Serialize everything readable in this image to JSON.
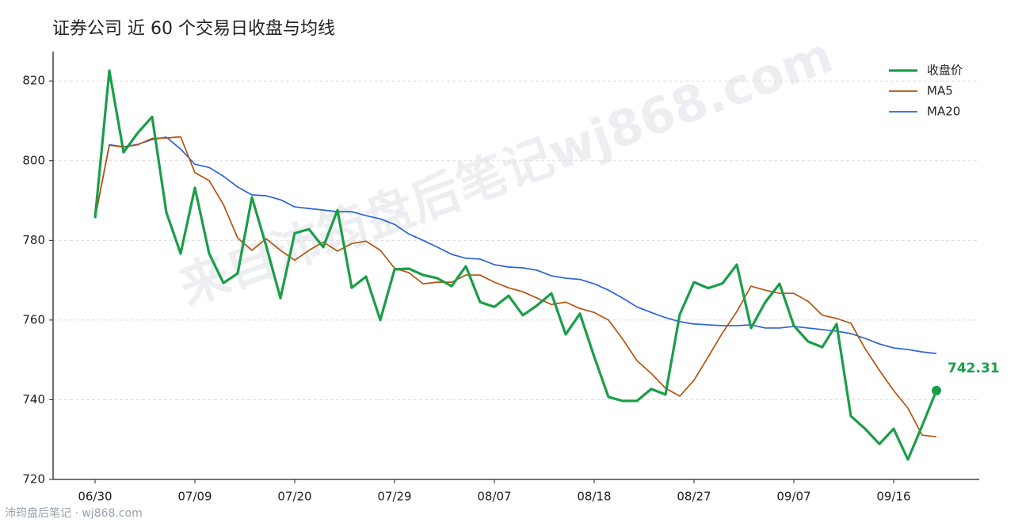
{
  "chart_data": {
    "type": "line",
    "title": "证券公司 近 60 个交易日收盘与均线",
    "watermark": "来自沛筠盘后笔记wj868.com",
    "footer": "沛筠盘后笔记 · wj868.com",
    "categories": [
      "06/30",
      null,
      null,
      null,
      null,
      null,
      null,
      "07/09",
      null,
      null,
      null,
      null,
      null,
      null,
      "07/20",
      null,
      null,
      null,
      null,
      null,
      null,
      "07/29",
      null,
      null,
      null,
      null,
      null,
      null,
      "08/07",
      null,
      null,
      null,
      null,
      null,
      null,
      "08/18",
      null,
      null,
      null,
      null,
      null,
      null,
      "08/27",
      null,
      null,
      null,
      null,
      null,
      null,
      "09/07",
      null,
      null,
      null,
      null,
      null,
      null,
      "09/16",
      null,
      null,
      null
    ],
    "series": [
      {
        "name": "收盘价",
        "color": "#1a9e48",
        "width": 3.2,
        "values": [
          785.6,
          822.6,
          802.1,
          807.0,
          811.0,
          787.0,
          776.7,
          793.2,
          776.7,
          769.3,
          771.7,
          790.8,
          778.6,
          765.5,
          781.8,
          782.8,
          778.3,
          787.6,
          768.1,
          770.9,
          760.0,
          772.7,
          772.9,
          771.3,
          770.5,
          768.5,
          773.5,
          764.5,
          763.3,
          766.1,
          761.2,
          763.7,
          766.7,
          756.4,
          761.6,
          750.8,
          740.7,
          739.7,
          739.7,
          742.7,
          741.3,
          761.4,
          769.5,
          768.0,
          769.2,
          773.9,
          758.0,
          764.5,
          769.1,
          758.6,
          754.6,
          753.2,
          759.0,
          735.9,
          732.7,
          728.9,
          732.7,
          725.0,
          733.5,
          742.31
        ]
      },
      {
        "name": "MA5",
        "color": "#b4540f",
        "width": 1.7,
        "values": [
          785.6,
          803.9,
          803.4,
          804.0,
          805.6,
          805.7,
          806.0,
          797.0,
          795.0,
          789.0,
          780.6,
          777.5,
          780.4,
          777.5,
          775.0,
          777.5,
          779.6,
          777.3,
          779.2,
          779.8,
          777.5,
          773.0,
          771.9,
          769.1,
          769.5,
          769.5,
          771.3,
          771.3,
          769.5,
          768.1,
          767.1,
          765.5,
          763.9,
          764.5,
          762.9,
          761.9,
          760.0,
          755.2,
          749.8,
          746.6,
          742.9,
          740.9,
          744.9,
          750.8,
          756.8,
          762.1,
          768.5,
          767.5,
          766.7,
          766.7,
          764.7,
          761.2,
          760.4,
          759.2,
          752.8,
          747.4,
          742.3,
          737.9,
          731.1,
          730.7
        ]
      },
      {
        "name": "MA20",
        "color": "#2b63d9",
        "width": 1.7,
        "values": [
          785.6,
          804.0,
          803.5,
          804.1,
          805.3,
          805.9,
          802.9,
          799.1,
          798.3,
          796.1,
          793.4,
          791.4,
          791.2,
          790.2,
          788.4,
          788.0,
          787.6,
          787.2,
          787.2,
          786.2,
          785.4,
          784.0,
          781.6,
          780.0,
          778.3,
          776.5,
          775.5,
          775.3,
          773.9,
          773.3,
          773.1,
          772.5,
          771.1,
          770.5,
          770.2,
          769.1,
          767.5,
          765.5,
          763.3,
          761.9,
          760.6,
          759.6,
          759.0,
          758.8,
          758.6,
          758.6,
          758.8,
          758.0,
          758.0,
          758.4,
          758.0,
          757.6,
          757.2,
          756.6,
          755.4,
          754.0,
          753.0,
          752.6,
          752.0,
          751.6
        ]
      }
    ],
    "ylim": [
      720,
      827.4
    ],
    "yticks": [
      720,
      740,
      760,
      780,
      800,
      820
    ],
    "grid": true,
    "legend": "upper right"
  }
}
